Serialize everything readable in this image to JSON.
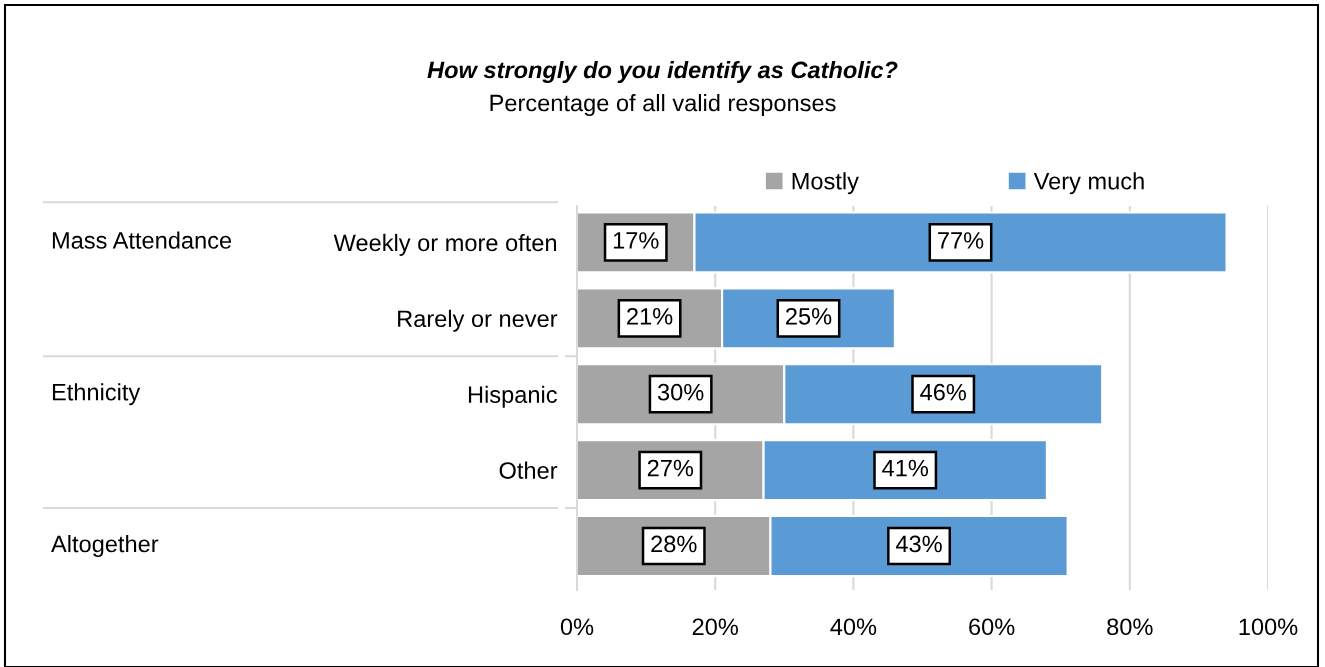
{
  "chart_data": {
    "type": "bar",
    "orientation": "horizontal",
    "stacked": true,
    "title": "How strongly do you identify as Catholic?",
    "subtitle": "Percentage of all valid responses",
    "categories": [
      "Weekly or more often",
      "Rarely or never",
      "Hispanic",
      "Other",
      null
    ],
    "annotations": [
      "Mass Attendance",
      "Ethnicity",
      "Altogether"
    ],
    "series": [
      {
        "name": "Mostly",
        "color": "#a5a5a5",
        "values": [
          17,
          21,
          30,
          27,
          28
        ],
        "value_labels": [
          "17%",
          "21%",
          "30%",
          "27%",
          "28%"
        ]
      },
      {
        "name": "Very much",
        "color": "#5b9bd5",
        "values": [
          77,
          25,
          46,
          41,
          43
        ],
        "value_labels": [
          "77%",
          "25%",
          "46%",
          "41%",
          "43%"
        ]
      }
    ],
    "xlim": [
      0,
      100
    ],
    "xticks": [
      {
        "value": 0,
        "label": "0%"
      },
      {
        "value": 20,
        "label": "20%"
      },
      {
        "value": 40,
        "label": "40%"
      },
      {
        "value": 60,
        "label": "60%"
      },
      {
        "value": 80,
        "label": "80%"
      },
      {
        "value": 100,
        "label": "100%"
      }
    ],
    "grid": "x",
    "legend": "top"
  }
}
